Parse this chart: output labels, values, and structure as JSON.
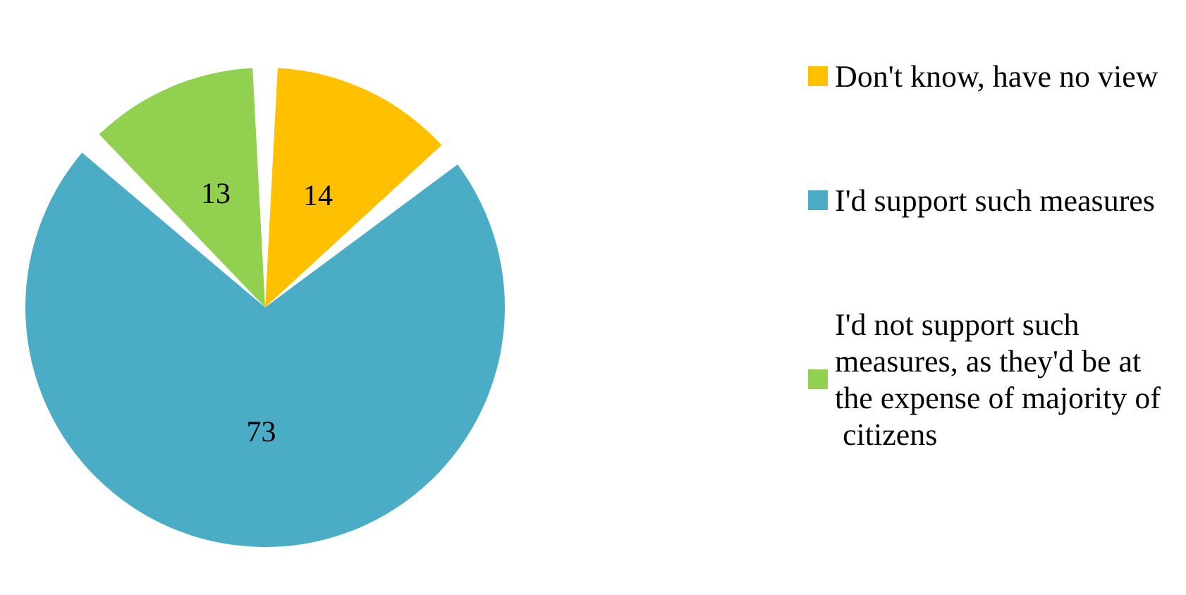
{
  "chart_data": {
    "type": "pie",
    "categories": [
      "Don't know, have no view",
      "I'd support such measures",
      "I'd not support such measures, as they'd be at the expense of majority of citizens"
    ],
    "values": [
      14,
      73,
      13
    ],
    "colors": [
      "#ffc000",
      "#4bacc6",
      "#92d050"
    ],
    "data_labels": true,
    "legend": "right"
  }
}
